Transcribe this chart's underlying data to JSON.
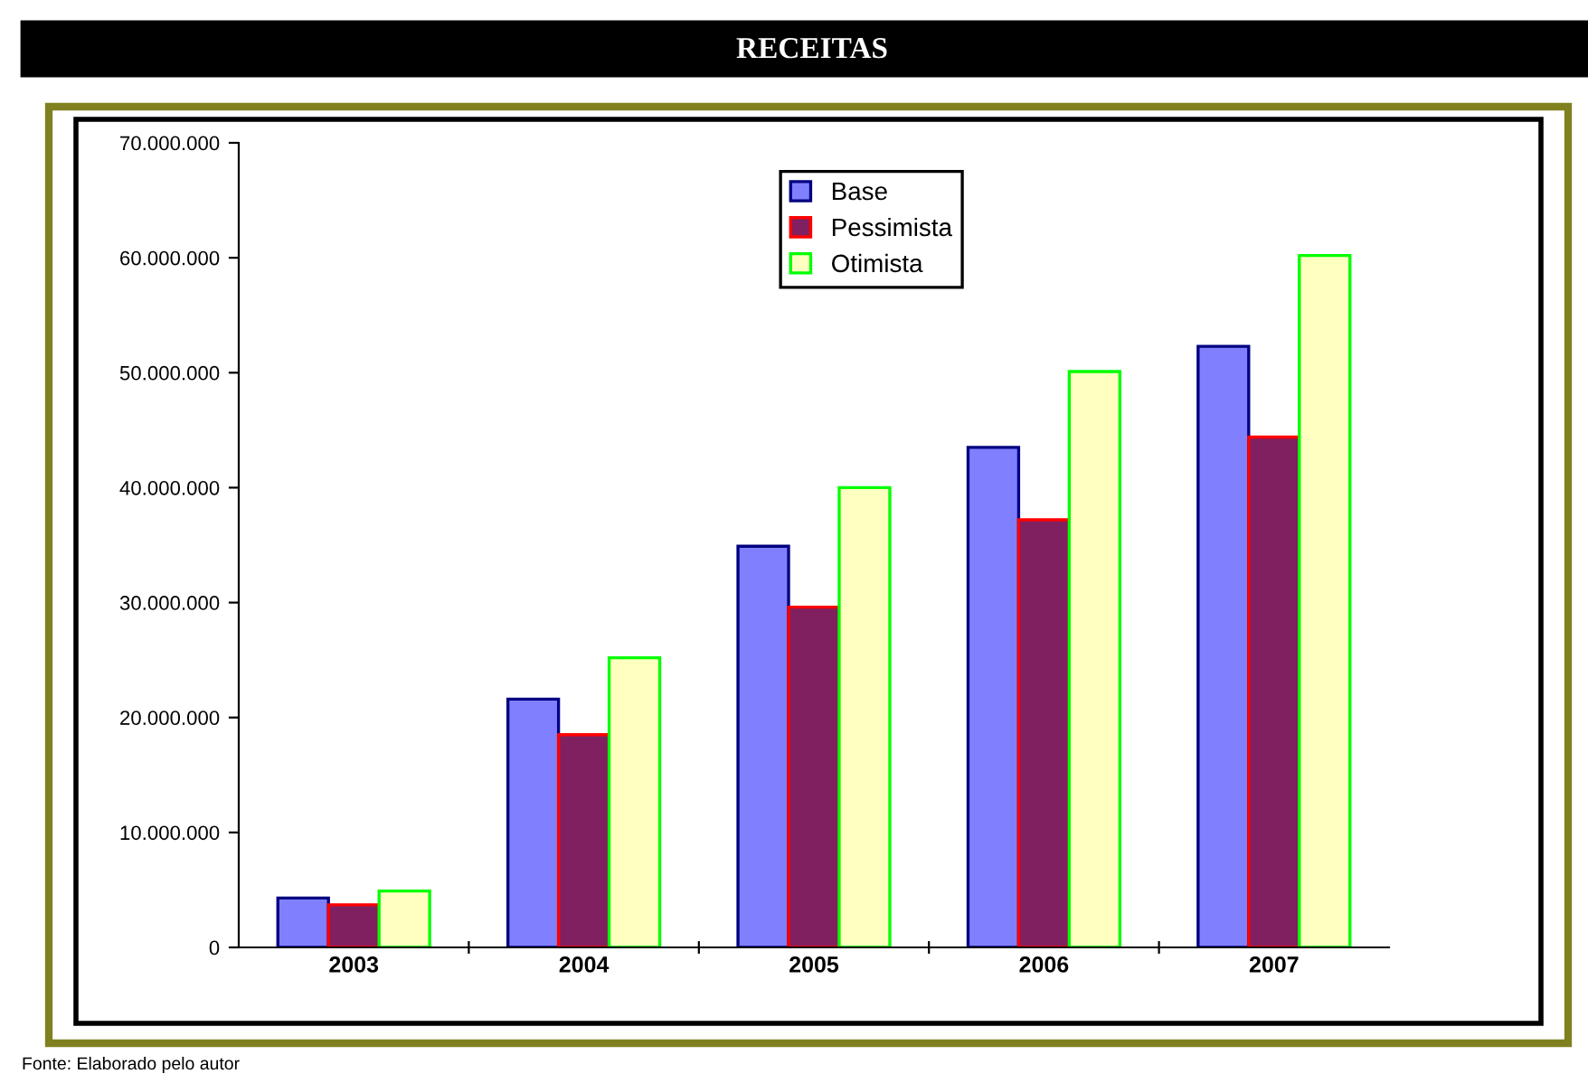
{
  "chart_data": {
    "type": "bar",
    "title": "RECEITAS",
    "categories": [
      "2003",
      "2004",
      "2005",
      "2006",
      "2007"
    ],
    "series": [
      {
        "name": "Base",
        "color": "#8080ff",
        "values": [
          4300000,
          21600000,
          34900000,
          43500000,
          52300000
        ]
      },
      {
        "name": "Pessimista",
        "color": "#802060",
        "values": [
          3700000,
          18500000,
          29600000,
          37200000,
          44400000
        ]
      },
      {
        "name": "Otimista",
        "color": "#ffffc0",
        "values": [
          4900000,
          25200000,
          40000000,
          50100000,
          60200000
        ]
      }
    ],
    "ylim": [
      0,
      70000000
    ],
    "yticks": [
      {
        "value": 0,
        "label": "0"
      },
      {
        "value": 10000000,
        "label": "10.000.000"
      },
      {
        "value": 20000000,
        "label": "20.000.000"
      },
      {
        "value": 30000000,
        "label": "30.000.000"
      },
      {
        "value": 40000000,
        "label": "40.000.000"
      },
      {
        "value": 50000000,
        "label": "50.000.000"
      },
      {
        "value": 60000000,
        "label": "60.000.000"
      },
      {
        "value": 70000000,
        "label": "70.000.000"
      }
    ],
    "grid": false,
    "legend": "top",
    "annotations": [
      "Fonte: Elaborado pelo autor"
    ]
  }
}
